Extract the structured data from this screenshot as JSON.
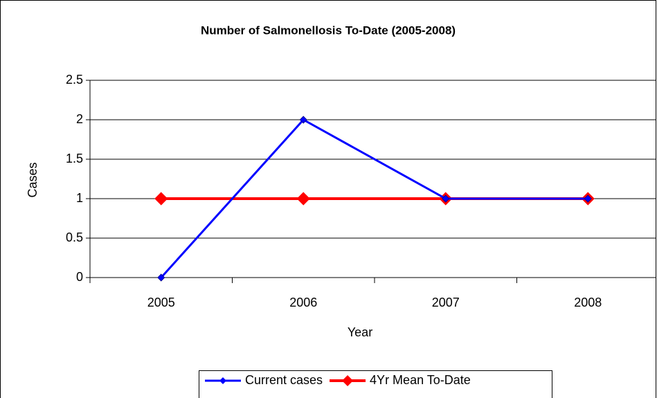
{
  "chart_data": {
    "type": "line",
    "title": "Number of Salmonellosis To-Date (2005-2008)",
    "x_label": "Year",
    "y_label": "Cases",
    "categories": [
      "2005",
      "2006",
      "2007",
      "2008"
    ],
    "series": [
      {
        "name": "Current cases",
        "color": "#0000ff",
        "values": [
          0,
          2,
          1,
          1
        ]
      },
      {
        "name": "4Yr Mean To-Date",
        "color": "#ff0000",
        "values": [
          1,
          1,
          1,
          1
        ]
      }
    ],
    "ylim": [
      0,
      2.5
    ],
    "yticks": [
      0,
      0.5,
      1,
      1.5,
      2,
      2.5
    ],
    "grid": true,
    "legend": "bottom"
  }
}
